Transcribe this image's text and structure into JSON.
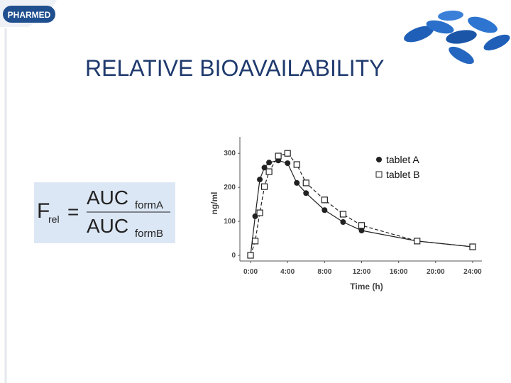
{
  "logo": "PHARMED",
  "title": "RELATIVE BIOAVAILABILITY",
  "formula": {
    "lhs": "F",
    "lhs_sub": "rel",
    "operator": "=",
    "numerator": "AUC",
    "numerator_sub": "formA",
    "denominator": "AUC",
    "denominator_sub": "formB"
  },
  "chart_data": {
    "type": "line",
    "x_label": "Time (h)",
    "y_label": "ng/ml",
    "x": [
      0,
      0.5,
      1,
      1.5,
      2,
      3,
      4,
      5,
      6,
      8,
      10,
      12,
      18,
      24
    ],
    "series": [
      {
        "name": "tablet A",
        "color": "#222222",
        "marker": "circle",
        "dash": false,
        "values": [
          0,
          115,
          223,
          258,
          273,
          279,
          271,
          213,
          183,
          133,
          98,
          73,
          42,
          25
        ]
      },
      {
        "name": "tablet B",
        "color": "#222222",
        "marker": "square",
        "dash": true,
        "values": [
          0,
          42,
          125,
          202,
          246,
          292,
          300,
          267,
          213,
          163,
          121,
          88,
          42,
          25
        ]
      }
    ],
    "xlim": [
      -0.5,
      25
    ],
    "ylim": [
      0,
      340
    ],
    "xticks": [
      {
        "value": 0,
        "label": "0:00"
      },
      {
        "value": 4,
        "label": "4:00"
      },
      {
        "value": 8,
        "label": "8:00"
      },
      {
        "value": 12,
        "label": "12:00"
      },
      {
        "value": 16,
        "label": "16:00"
      },
      {
        "value": 20,
        "label": "20:00"
      },
      {
        "value": 24,
        "label": "24:00"
      }
    ],
    "yticks": [
      0,
      100,
      200,
      300
    ],
    "legend": "upper right",
    "grid": false
  }
}
